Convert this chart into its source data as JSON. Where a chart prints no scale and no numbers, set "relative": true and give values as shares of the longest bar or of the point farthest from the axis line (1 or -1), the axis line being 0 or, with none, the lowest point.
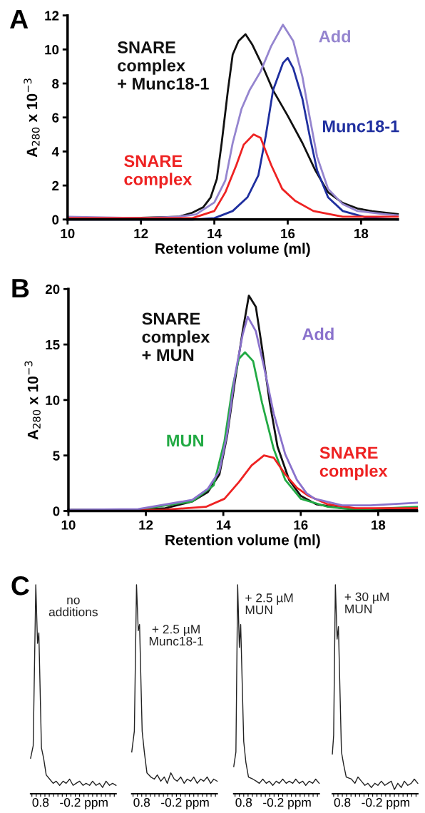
{
  "chart_data": [
    {
      "type": "line",
      "title": "A",
      "xlabel": "Retention volume (ml)",
      "ylabel": "A$_{280}$ x 10$^{−3}$",
      "xlim": [
        10,
        19
      ],
      "xticks": [
        10,
        12,
        14,
        16,
        18
      ],
      "ylim": [
        0,
        12
      ],
      "yticks": [
        0,
        2,
        4,
        6,
        8,
        10,
        12
      ],
      "grid": false,
      "legend": false,
      "series": [
        {
          "name": "SNARE\ncomplex\n+ Munc18-1",
          "color": "#111111",
          "x": [
            10,
            12,
            13.02,
            13.4,
            13.7,
            13.9,
            14.07,
            14.2,
            14.37,
            14.5,
            14.66,
            14.85,
            15.03,
            15.3,
            15.6,
            16.0,
            16.4,
            16.75,
            17.1,
            17.5,
            17.9,
            18.3,
            19.0
          ],
          "values": [
            0.08,
            0.1,
            0.16,
            0.4,
            0.73,
            1.3,
            2.4,
            4.5,
            7.6,
            9.7,
            10.5,
            10.9,
            10.3,
            9.1,
            7.6,
            6.1,
            4.5,
            2.9,
            1.6,
            0.97,
            0.65,
            0.49,
            0.32
          ]
        },
        {
          "name": "Add",
          "color": "#9585cf",
          "x": [
            10,
            12,
            13.0,
            13.5,
            14.0,
            14.3,
            14.5,
            14.74,
            14.96,
            15.26,
            15.55,
            15.87,
            16.15,
            16.4,
            16.6,
            16.8,
            17.1,
            17.5,
            17.9,
            18.6,
            19.0
          ],
          "values": [
            0.16,
            0.08,
            0.16,
            0.3,
            1.0,
            2.3,
            4.5,
            6.5,
            7.6,
            8.7,
            10.2,
            11.45,
            10.5,
            8.4,
            6.0,
            3.7,
            1.8,
            0.9,
            0.5,
            0.32,
            0.24
          ]
        },
        {
          "name": "Munc18-1",
          "color": "#1f2f9f",
          "x": [
            10,
            13.4,
            14.0,
            14.5,
            14.9,
            15.2,
            15.4,
            15.6,
            15.87,
            16.0,
            16.15,
            16.4,
            16.6,
            16.8,
            17.1,
            17.5,
            18.2,
            19.0
          ],
          "values": [
            0,
            0,
            0.08,
            0.5,
            1.3,
            2.6,
            4.9,
            7.6,
            9.2,
            9.5,
            8.9,
            7.1,
            4.9,
            2.9,
            1.3,
            0.5,
            0.08,
            0
          ]
        },
        {
          "name": "SNARE\ncomplex",
          "color": "#ee2222",
          "x": [
            10,
            12.65,
            13.4,
            14.0,
            14.3,
            14.6,
            14.8,
            15.07,
            15.26,
            15.55,
            15.85,
            16.2,
            16.7,
            17.5,
            19.0
          ],
          "values": [
            0.08,
            0.08,
            0.08,
            0.5,
            1.6,
            3.2,
            4.4,
            5.0,
            4.8,
            3.2,
            1.8,
            1.1,
            0.5,
            0.16,
            0.16
          ]
        }
      ]
    },
    {
      "type": "line",
      "title": "B",
      "xlabel": "Retention volume (ml)",
      "ylabel": "A$_{280}$ x 10$^{−3}$",
      "xlim": [
        10,
        19
      ],
      "xticks": [
        10,
        12,
        14,
        16,
        18
      ],
      "ylim": [
        0,
        20
      ],
      "yticks": [
        0,
        5,
        10,
        15,
        20
      ],
      "grid": false,
      "legend": false,
      "series": [
        {
          "name": "SNARE\ncomplex\n+ MUN",
          "color": "#111111",
          "x": [
            10,
            11.8,
            12.5,
            13.2,
            13.6,
            13.9,
            14.1,
            14.3,
            14.5,
            14.66,
            14.84,
            15.0,
            15.2,
            15.4,
            15.7,
            16.0,
            16.4,
            17.07,
            18.1,
            19.0
          ],
          "values": [
            0.1,
            0.12,
            0.25,
            0.86,
            1.7,
            3.3,
            6.8,
            11.7,
            16.2,
            19.4,
            18.4,
            14.7,
            9.75,
            5.8,
            2.8,
            1.36,
            0.6,
            0.25,
            0.12,
            0.12
          ]
        },
        {
          "name": "MUN",
          "color": "#22aa44",
          "x": [
            10,
            11.8,
            13.2,
            13.75,
            14.03,
            14.24,
            14.4,
            14.56,
            14.77,
            15.0,
            15.3,
            15.6,
            16.0,
            16.7,
            17.4,
            19.0
          ],
          "values": [
            0,
            0.12,
            0.86,
            2.3,
            6.3,
            11.2,
            13.7,
            14.3,
            13.5,
            9.75,
            5.6,
            2.8,
            1.1,
            0.37,
            0.12,
            0.37
          ]
        },
        {
          "name": "SNARE\ncomplex",
          "color": "#ee2222",
          "x": [
            10,
            12.5,
            13.55,
            14.03,
            14.4,
            14.73,
            15.05,
            15.3,
            15.6,
            15.9,
            16.2,
            16.7,
            17.4,
            19.0
          ],
          "values": [
            0,
            0.12,
            0.37,
            1.1,
            2.6,
            4.1,
            5.0,
            4.8,
            3.3,
            2.1,
            1.36,
            0.6,
            0.25,
            0.25
          ]
        },
        {
          "name": "Add",
          "color": "#8a72cc",
          "x": [
            10,
            11.8,
            13.2,
            13.6,
            13.9,
            14.1,
            14.3,
            14.5,
            14.63,
            14.84,
            15.05,
            15.3,
            15.6,
            15.9,
            16.15,
            16.36,
            17.07,
            17.8,
            19.0
          ],
          "values": [
            0.1,
            0.17,
            1.0,
            2.0,
            3.6,
            7.0,
            12.2,
            15.9,
            17.5,
            16.2,
            13.0,
            8.8,
            5.1,
            2.8,
            1.6,
            1.1,
            0.5,
            0.5,
            0.74
          ]
        }
      ]
    },
    {
      "type": "line",
      "title": "C",
      "relative": true,
      "xlim": [
        1.03,
        -0.94
      ],
      "xticks": [
        {
          "value": 1.0,
          "label": null
        },
        {
          "value": 0.9,
          "label": null
        },
        {
          "value": 0.8,
          "label": "0.8"
        },
        {
          "value": 0.7,
          "label": null
        },
        {
          "value": 0.6,
          "label": null
        },
        {
          "value": 0.5,
          "label": null
        },
        {
          "value": 0.4,
          "label": null
        },
        {
          "value": 0.3,
          "label": null
        },
        {
          "value": 0.2,
          "label": null
        },
        {
          "value": 0.1,
          "label": null
        },
        {
          "value": 0.0,
          "label": null
        },
        {
          "value": -0.1,
          "label": null
        },
        {
          "value": -0.2,
          "label": "-0.2 ppm"
        },
        {
          "value": -0.3,
          "label": null
        },
        {
          "value": -0.4,
          "label": null
        },
        {
          "value": -0.5,
          "label": null
        },
        {
          "value": -0.6,
          "label": null
        },
        {
          "value": -0.7,
          "label": null
        },
        {
          "value": -0.8,
          "label": null
        },
        {
          "value": -0.9,
          "label": null
        }
      ],
      "tick_labels": "x",
      "series": [
        {
          "name": "no\nadditions",
          "color": "#222222",
          "x": [
            1.03,
            0.97,
            0.91,
            0.87,
            0.84,
            0.78,
            0.73,
            0.67,
            0.59,
            0.51,
            0.44,
            0.36,
            0.28,
            0.21,
            0.13,
            0.05,
            -0.02,
            -0.1,
            -0.18,
            -0.25,
            -0.33,
            -0.4,
            -0.48,
            -0.56,
            -0.63,
            -0.71,
            -0.79,
            -0.86,
            -0.94
          ],
          "values": [
            0.17,
            0.23,
            1.0,
            0.72,
            0.77,
            0.22,
            0.17,
            0.09,
            0.07,
            0.05,
            0.06,
            0.04,
            0.06,
            0.05,
            0.07,
            0.04,
            0.05,
            0.06,
            0.04,
            0.05,
            0.04,
            0.06,
            0.04,
            0.05,
            0.03,
            0.06,
            0.04,
            0.05,
            0.04
          ]
        }
      ]
    },
    {
      "type": "line",
      "relative": true,
      "xlim": [
        1.03,
        -0.94
      ],
      "xticks": [
        {
          "value": 1.0,
          "label": null
        },
        {
          "value": 0.9,
          "label": null
        },
        {
          "value": 0.8,
          "label": "0.8"
        },
        {
          "value": 0.7,
          "label": null
        },
        {
          "value": 0.6,
          "label": null
        },
        {
          "value": 0.5,
          "label": null
        },
        {
          "value": 0.4,
          "label": null
        },
        {
          "value": 0.3,
          "label": null
        },
        {
          "value": 0.2,
          "label": null
        },
        {
          "value": 0.1,
          "label": null
        },
        {
          "value": 0.0,
          "label": null
        },
        {
          "value": -0.1,
          "label": null
        },
        {
          "value": -0.2,
          "label": "-0.2 ppm"
        },
        {
          "value": -0.3,
          "label": null
        },
        {
          "value": -0.4,
          "label": null
        },
        {
          "value": -0.5,
          "label": null
        },
        {
          "value": -0.6,
          "label": null
        },
        {
          "value": -0.7,
          "label": null
        },
        {
          "value": -0.8,
          "label": null
        },
        {
          "value": -0.9,
          "label": null
        }
      ],
      "tick_labels": "x",
      "series": [
        {
          "name": "+ 2.5 µM\nMunc18-1",
          "color": "#222222",
          "x": [
            1.03,
            0.97,
            0.92,
            0.88,
            0.85,
            0.79,
            0.74,
            0.68,
            0.59,
            0.51,
            0.44,
            0.36,
            0.28,
            0.21,
            0.13,
            0.05,
            -0.02,
            -0.1,
            -0.18,
            -0.25,
            -0.33,
            -0.4,
            -0.48,
            -0.56,
            -0.63,
            -0.71,
            -0.79,
            -0.86,
            -0.94
          ],
          "values": [
            0.2,
            0.3,
            1.0,
            0.78,
            0.81,
            0.3,
            0.2,
            0.1,
            0.08,
            0.07,
            0.09,
            0.06,
            0.08,
            0.05,
            0.1,
            0.07,
            0.06,
            0.08,
            0.05,
            0.07,
            0.06,
            0.08,
            0.05,
            0.07,
            0.06,
            0.08,
            0.05,
            0.07,
            0.06
          ]
        }
      ]
    },
    {
      "type": "line",
      "relative": true,
      "xlim": [
        1.03,
        -0.94
      ],
      "xticks": [
        {
          "value": 1.0,
          "label": null
        },
        {
          "value": 0.9,
          "label": null
        },
        {
          "value": 0.8,
          "label": "0.8"
        },
        {
          "value": 0.7,
          "label": null
        },
        {
          "value": 0.6,
          "label": null
        },
        {
          "value": 0.5,
          "label": null
        },
        {
          "value": 0.4,
          "label": null
        },
        {
          "value": 0.3,
          "label": null
        },
        {
          "value": 0.2,
          "label": null
        },
        {
          "value": 0.1,
          "label": null
        },
        {
          "value": 0.0,
          "label": null
        },
        {
          "value": -0.1,
          "label": null
        },
        {
          "value": -0.2,
          "label": "-0.2 ppm"
        },
        {
          "value": -0.3,
          "label": null
        },
        {
          "value": -0.4,
          "label": null
        },
        {
          "value": -0.5,
          "label": null
        },
        {
          "value": -0.6,
          "label": null
        },
        {
          "value": -0.7,
          "label": null
        },
        {
          "value": -0.8,
          "label": null
        },
        {
          "value": -0.9,
          "label": null
        }
      ],
      "tick_labels": "x",
      "series": [
        {
          "name": "+ 2.5 µM\nMUN",
          "color": "#222222",
          "x": [
            1.03,
            0.98,
            0.94,
            0.9,
            0.87,
            0.8,
            0.75,
            0.69,
            0.59,
            0.51,
            0.44,
            0.36,
            0.28,
            0.21,
            0.13,
            0.05,
            -0.02,
            -0.1,
            -0.18,
            -0.25,
            -0.33,
            -0.4,
            -0.48,
            -0.56,
            -0.63,
            -0.71,
            -0.79,
            -0.86,
            -0.94
          ],
          "values": [
            0.13,
            0.2,
            1.0,
            0.7,
            0.81,
            0.25,
            0.15,
            0.08,
            0.07,
            0.06,
            0.05,
            0.07,
            0.05,
            0.06,
            0.04,
            0.06,
            0.05,
            0.07,
            0.05,
            0.06,
            0.05,
            0.07,
            0.05,
            0.06,
            0.04,
            0.06,
            0.05,
            0.07,
            0.05
          ]
        }
      ]
    },
    {
      "type": "line",
      "relative": true,
      "xlim": [
        1.03,
        -0.94
      ],
      "xticks": [
        {
          "value": 1.0,
          "label": null
        },
        {
          "value": 0.9,
          "label": null
        },
        {
          "value": 0.8,
          "label": "0.8"
        },
        {
          "value": 0.7,
          "label": null
        },
        {
          "value": 0.6,
          "label": null
        },
        {
          "value": 0.5,
          "label": null
        },
        {
          "value": 0.4,
          "label": null
        },
        {
          "value": 0.3,
          "label": null
        },
        {
          "value": 0.2,
          "label": null
        },
        {
          "value": 0.1,
          "label": null
        },
        {
          "value": 0.0,
          "label": null
        },
        {
          "value": -0.1,
          "label": null
        },
        {
          "value": -0.2,
          "label": "-0.2 ppm"
        },
        {
          "value": -0.3,
          "label": null
        },
        {
          "value": -0.4,
          "label": null
        },
        {
          "value": -0.5,
          "label": null
        },
        {
          "value": -0.6,
          "label": null
        },
        {
          "value": -0.7,
          "label": null
        },
        {
          "value": -0.8,
          "label": null
        },
        {
          "value": -0.9,
          "label": null
        }
      ],
      "tick_labels": "x",
      "series": [
        {
          "name": "+ 30 µM\nMUN",
          "color": "#222222",
          "x": [
            1.03,
            1.0,
            0.96,
            0.92,
            0.89,
            0.82,
            0.77,
            0.71,
            0.59,
            0.51,
            0.44,
            0.36,
            0.28,
            0.21,
            0.13,
            0.05,
            -0.02,
            -0.1,
            -0.18,
            -0.25,
            -0.33,
            -0.4,
            -0.48,
            -0.56,
            -0.63,
            -0.71,
            -0.79,
            -0.86,
            -0.94
          ],
          "values": [
            0.19,
            0.28,
            1.0,
            0.74,
            0.8,
            0.2,
            0.14,
            0.08,
            0.07,
            0.05,
            0.08,
            0.06,
            0.04,
            0.05,
            0.03,
            0.05,
            0.04,
            0.06,
            0.04,
            0.05,
            0.06,
            0.02,
            0.05,
            0.03,
            0.06,
            0.04,
            0.05,
            0.07,
            0.05
          ]
        }
      ]
    }
  ]
}
